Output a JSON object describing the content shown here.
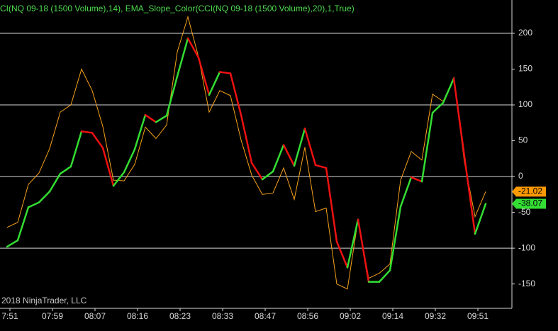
{
  "chart_data": {
    "type": "line",
    "title": "CI(NQ 09-18 (1500 Volume),14), EMA_Slope_Color(CCI(NQ 09-18 (1500 Volume),20),1,True)",
    "copyright": "2018 NinjaTrader, LLC",
    "categories": [
      "7:51",
      null,
      null,
      null,
      "07:59",
      null,
      null,
      null,
      "08:07",
      null,
      null,
      null,
      "08:16",
      null,
      null,
      null,
      "08:23",
      null,
      null,
      null,
      "08:33",
      null,
      null,
      null,
      "08:47",
      null,
      null,
      null,
      "08:56",
      null,
      null,
      null,
      "09:02",
      null,
      null,
      null,
      "09:14",
      null,
      null,
      null,
      "09:32",
      null,
      null,
      null,
      "09:51",
      null
    ],
    "series": [
      {
        "name": "CCI",
        "color": "#f7a21b",
        "values": [
          -71,
          -64,
          -11,
          5,
          39,
          90,
          100,
          150,
          120,
          70,
          -5,
          -6,
          17,
          69,
          53,
          72,
          174,
          223,
          167,
          90,
          120,
          113,
          51,
          2,
          -25,
          -23,
          12,
          -32,
          41,
          -49,
          -44,
          -150,
          -157,
          -60,
          -142,
          -135,
          -122,
          -5,
          35,
          23,
          115,
          105,
          138,
          20,
          -56,
          -21.02
        ]
      },
      {
        "name": "EMA_Slope_Color",
        "color": "#33dd33",
        "down_color": "#ee1111",
        "values": [
          -98,
          -89,
          -43,
          -36,
          -21,
          4,
          14,
          63,
          61,
          40,
          -13,
          6,
          38,
          86,
          76,
          85,
          140,
          193,
          166,
          114,
          146,
          144,
          86,
          19,
          -4,
          7,
          44,
          15,
          67,
          16,
          12,
          -91,
          -127,
          -60,
          -147,
          -147,
          -131,
          -42,
          -1,
          -7,
          89,
          103,
          137,
          28,
          -80,
          -38.07
        ]
      }
    ],
    "ylim": [
      -184,
      246.5
    ],
    "yticks": [
      -150,
      -100,
      -50,
      0,
      50,
      100,
      150,
      200
    ],
    "grid_ticks": [
      -100,
      0,
      100,
      200
    ],
    "background": "#000000"
  }
}
